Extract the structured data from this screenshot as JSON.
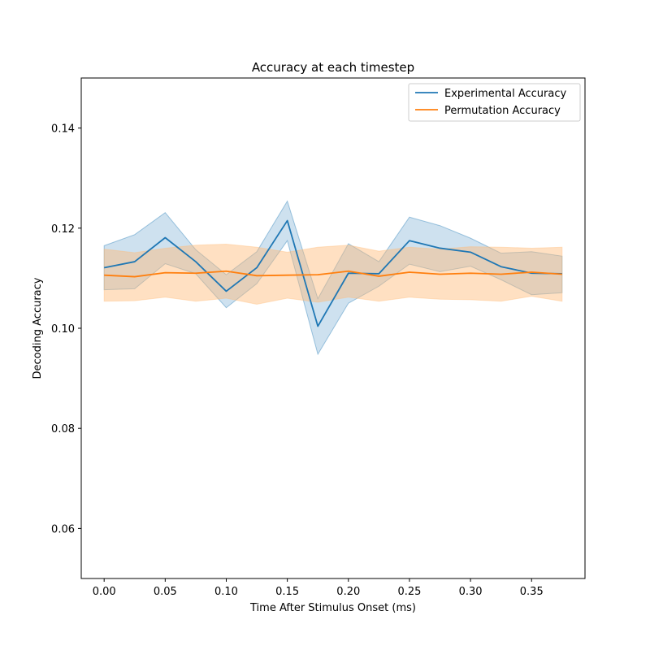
{
  "chart_data": {
    "type": "line",
    "title": "Accuracy at each timestep",
    "xlabel": "Time After Stimulus Onset (ms)",
    "ylabel": "Decoding Accuracy",
    "xlim": [
      -0.01875,
      0.39375
    ],
    "ylim": [
      0.05,
      0.15
    ],
    "xticks": [
      0.0,
      0.05,
      0.1,
      0.15,
      0.2,
      0.25,
      0.3,
      0.35
    ],
    "xtick_labels": [
      "0.00",
      "0.05",
      "0.10",
      "0.15",
      "0.20",
      "0.25",
      "0.30",
      "0.35"
    ],
    "yticks": [
      0.06,
      0.08,
      0.1,
      0.12,
      0.14
    ],
    "ytick_labels": [
      "0.06",
      "0.08",
      "0.10",
      "0.12",
      "0.14"
    ],
    "grid": false,
    "legend_position": "top-right",
    "x": [
      0.0,
      0.025,
      0.05,
      0.075,
      0.1,
      0.125,
      0.15,
      0.175,
      0.2,
      0.225,
      0.25,
      0.275,
      0.3,
      0.325,
      0.35,
      0.375
    ],
    "series": [
      {
        "name": "Experimental Accuracy",
        "color": "#1f77b4",
        "band_color": "#1f77b4",
        "values": [
          0.1121,
          0.1133,
          0.1181,
          0.1133,
          0.1074,
          0.1121,
          0.1215,
          0.1004,
          0.111,
          0.1109,
          0.1175,
          0.116,
          0.1152,
          0.1123,
          0.111,
          0.1109
        ],
        "lower": [
          0.1077,
          0.1079,
          0.1129,
          0.1109,
          0.1041,
          0.1089,
          0.1175,
          0.0948,
          0.105,
          0.1084,
          0.1128,
          0.1113,
          0.1124,
          0.1097,
          0.1067,
          0.1071
        ],
        "upper": [
          0.1165,
          0.1187,
          0.1231,
          0.1157,
          0.1107,
          0.1153,
          0.1254,
          0.1059,
          0.1169,
          0.1133,
          0.1222,
          0.1205,
          0.118,
          0.115,
          0.1153,
          0.1144
        ]
      },
      {
        "name": "Permutation Accuracy",
        "color": "#ff7f0e",
        "band_color": "#ffbb78",
        "values": [
          0.1106,
          0.1103,
          0.1111,
          0.111,
          0.1114,
          0.1105,
          0.1106,
          0.1107,
          0.1114,
          0.1104,
          0.1112,
          0.1108,
          0.111,
          0.1108,
          0.1112,
          0.1108
        ],
        "lower": [
          0.1054,
          0.1055,
          0.1062,
          0.1054,
          0.106,
          0.1048,
          0.106,
          0.1052,
          0.1062,
          0.1054,
          0.1062,
          0.1058,
          0.1057,
          0.1054,
          0.1064,
          0.1054
        ],
        "upper": [
          0.1158,
          0.1151,
          0.116,
          0.1166,
          0.1168,
          0.1162,
          0.1152,
          0.1162,
          0.1166,
          0.1154,
          0.1162,
          0.1158,
          0.1163,
          0.1162,
          0.116,
          0.1162
        ]
      }
    ]
  }
}
